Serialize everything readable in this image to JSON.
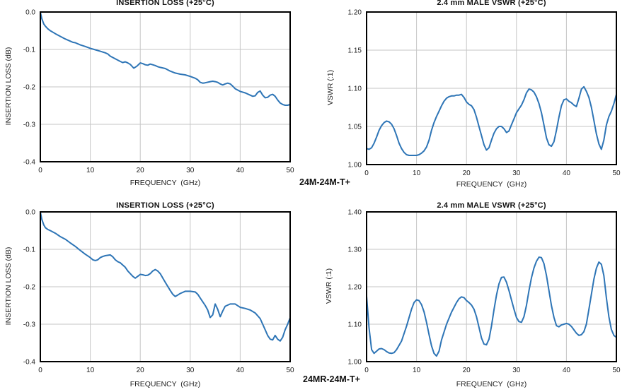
{
  "footer_labels": {
    "top": "24M-24M-T+",
    "bottom": "24MR-24M-T+"
  },
  "colors": {
    "line": "#2E75B6",
    "grid": "#c6c6c6",
    "axis_border": "#000000",
    "tick_text": "#1a1a1a"
  },
  "chart_data": [
    {
      "id": "insertion-loss-24M-24M",
      "type": "line",
      "title": "INSERTION LOSS (+25°C)",
      "xlabel": "FREQUENCY  (GHz)",
      "ylabel": "INSERTION LOSS (dB)",
      "xlim": [
        0,
        50
      ],
      "ylim": [
        -0.4,
        0
      ],
      "xticks": [
        0,
        10,
        20,
        30,
        40,
        50
      ],
      "xtick_labels": [
        "0",
        "10",
        "20",
        "30",
        "40",
        "50"
      ],
      "yticks": [
        0,
        -0.1,
        -0.2,
        -0.3,
        -0.4
      ],
      "ytick_labels": [
        "0.0",
        "-0.1",
        "-0.2",
        "-0.3",
        "-0.4"
      ],
      "grid": true,
      "legend": null,
      "x": [
        0,
        0.3,
        0.7,
        1,
        1.5,
        2,
        3,
        4,
        5,
        6,
        6.5,
        7,
        8,
        9,
        10,
        11,
        12,
        13,
        13.5,
        14,
        15,
        16,
        16.5,
        17,
        17.5,
        18,
        18.7,
        19.3,
        20,
        20.5,
        21,
        21.5,
        22,
        22.5,
        23,
        23.5,
        24,
        25,
        26,
        27,
        28,
        29,
        30,
        31,
        31.5,
        32,
        32.5,
        33,
        34,
        34.5,
        35,
        35.5,
        36,
        36.5,
        37,
        37.5,
        38,
        38.5,
        39,
        40,
        41,
        42,
        42.5,
        43,
        43.5,
        44,
        44.5,
        45,
        45.5,
        46,
        46.5,
        47,
        47.5,
        48,
        48.5,
        49,
        49.5,
        50
      ],
      "y": [
        0,
        -0.018,
        -0.032,
        -0.038,
        -0.045,
        -0.05,
        -0.058,
        -0.065,
        -0.072,
        -0.078,
        -0.081,
        -0.082,
        -0.088,
        -0.092,
        -0.097,
        -0.101,
        -0.105,
        -0.109,
        -0.112,
        -0.118,
        -0.125,
        -0.132,
        -0.135,
        -0.133,
        -0.136,
        -0.14,
        -0.15,
        -0.145,
        -0.136,
        -0.138,
        -0.141,
        -0.142,
        -0.139,
        -0.141,
        -0.143,
        -0.146,
        -0.148,
        -0.151,
        -0.158,
        -0.163,
        -0.166,
        -0.168,
        -0.172,
        -0.177,
        -0.181,
        -0.188,
        -0.19,
        -0.189,
        -0.186,
        -0.185,
        -0.186,
        -0.188,
        -0.192,
        -0.195,
        -0.192,
        -0.19,
        -0.192,
        -0.198,
        -0.205,
        -0.212,
        -0.216,
        -0.222,
        -0.225,
        -0.224,
        -0.215,
        -0.211,
        -0.222,
        -0.229,
        -0.228,
        -0.222,
        -0.22,
        -0.225,
        -0.235,
        -0.243,
        -0.247,
        -0.249,
        -0.249,
        -0.247
      ]
    },
    {
      "id": "vswr-24M-24M",
      "type": "line",
      "title": "2.4 mm MALE VSWR (+25°C)",
      "xlabel": "FREQUENCY  (GHz)",
      "ylabel": "VSWR (:1)",
      "xlim": [
        0,
        50
      ],
      "ylim": [
        1.0,
        1.2
      ],
      "xticks": [
        0,
        10,
        20,
        30,
        40,
        50
      ],
      "xtick_labels": [
        "0",
        "10",
        "20",
        "30",
        "40",
        "50"
      ],
      "yticks": [
        1.2,
        1.15,
        1.1,
        1.05,
        1.0
      ],
      "ytick_labels": [
        "1.20",
        "1.15",
        "1.10",
        "1.05",
        "1.00"
      ],
      "grid": true,
      "legend": null,
      "x": [
        0,
        0.5,
        1,
        1.5,
        2,
        2.5,
        3,
        3.5,
        4,
        4.5,
        5,
        5.5,
        6,
        6.5,
        7,
        7.5,
        8,
        8.5,
        9,
        9.5,
        10,
        10.5,
        11,
        11.5,
        12,
        12.5,
        13,
        13.5,
        14,
        14.5,
        15,
        15.5,
        16,
        16.5,
        17,
        17.5,
        18,
        18.5,
        19,
        19.5,
        20,
        20.5,
        21,
        21.5,
        22,
        22.5,
        23,
        23.5,
        24,
        24.5,
        25,
        25.5,
        26,
        26.5,
        27,
        27.5,
        28,
        28.5,
        29,
        29.5,
        30,
        30.5,
        31,
        31.5,
        32,
        32.5,
        33,
        33.5,
        34,
        34.5,
        35,
        35.5,
        36,
        36.5,
        37,
        37.5,
        38,
        38.5,
        39,
        39.5,
        40,
        40.5,
        41,
        41.5,
        42,
        42.5,
        43,
        43.5,
        44,
        44.5,
        45,
        45.5,
        46,
        46.5,
        47,
        47.5,
        48,
        48.5,
        49,
        49.5,
        50
      ],
      "y": [
        1.021,
        1.02,
        1.022,
        1.028,
        1.036,
        1.045,
        1.051,
        1.055,
        1.057,
        1.056,
        1.053,
        1.047,
        1.038,
        1.028,
        1.021,
        1.016,
        1.013,
        1.012,
        1.012,
        1.012,
        1.012,
        1.013,
        1.015,
        1.018,
        1.023,
        1.032,
        1.045,
        1.055,
        1.063,
        1.07,
        1.077,
        1.083,
        1.087,
        1.089,
        1.09,
        1.09,
        1.091,
        1.091,
        1.092,
        1.088,
        1.082,
        1.079,
        1.077,
        1.072,
        1.062,
        1.05,
        1.038,
        1.026,
        1.019,
        1.022,
        1.032,
        1.041,
        1.047,
        1.05,
        1.05,
        1.047,
        1.042,
        1.044,
        1.052,
        1.06,
        1.068,
        1.073,
        1.078,
        1.085,
        1.094,
        1.099,
        1.098,
        1.095,
        1.089,
        1.08,
        1.068,
        1.052,
        1.035,
        1.026,
        1.024,
        1.03,
        1.045,
        1.062,
        1.077,
        1.085,
        1.086,
        1.083,
        1.081,
        1.078,
        1.076,
        1.087,
        1.099,
        1.102,
        1.096,
        1.088,
        1.075,
        1.058,
        1.04,
        1.027,
        1.02,
        1.032,
        1.052,
        1.063,
        1.07,
        1.08,
        1.092
      ]
    },
    {
      "id": "insertion-loss-24MR-24M",
      "type": "line",
      "title": "INSERTION LOSS (+25°C)",
      "xlabel": "FREQUENCY  (GHz)",
      "ylabel": "INSERTION LOSS (dB)",
      "xlim": [
        0,
        50
      ],
      "ylim": [
        -0.4,
        0
      ],
      "xticks": [
        0,
        10,
        20,
        30,
        40,
        50
      ],
      "xtick_labels": [
        "0",
        "10",
        "20",
        "30",
        "40",
        "50"
      ],
      "yticks": [
        0,
        -0.1,
        -0.2,
        -0.3,
        -0.4
      ],
      "ytick_labels": [
        "0.0",
        "-0.1",
        "-0.2",
        "-0.3",
        "-0.4"
      ],
      "grid": true,
      "legend": null,
      "x": [
        0,
        0.3,
        0.7,
        1,
        1.5,
        2,
        3,
        4,
        5,
        6,
        7,
        8,
        9,
        10,
        10.5,
        11,
        11.5,
        12,
        12.5,
        13,
        14,
        14.5,
        15,
        15.5,
        16,
        17,
        17.5,
        18,
        18.5,
        19,
        19.5,
        20,
        20.5,
        21,
        21.5,
        22,
        22.5,
        23,
        23.5,
        24,
        25,
        26,
        26.5,
        27,
        27.5,
        28,
        29,
        30,
        31,
        31.5,
        32,
        33,
        33.5,
        34,
        34.5,
        35,
        35.5,
        36,
        36.5,
        37,
        38,
        39,
        40,
        41,
        42,
        43,
        44,
        44.5,
        45,
        45.5,
        46,
        46.5,
        47,
        47.5,
        48,
        48.5,
        49,
        49.5,
        50
      ],
      "y": [
        0,
        -0.02,
        -0.035,
        -0.042,
        -0.047,
        -0.05,
        -0.057,
        -0.066,
        -0.073,
        -0.083,
        -0.092,
        -0.103,
        -0.113,
        -0.122,
        -0.128,
        -0.13,
        -0.128,
        -0.122,
        -0.119,
        -0.117,
        -0.115,
        -0.12,
        -0.128,
        -0.133,
        -0.136,
        -0.148,
        -0.158,
        -0.165,
        -0.172,
        -0.177,
        -0.172,
        -0.167,
        -0.168,
        -0.17,
        -0.169,
        -0.165,
        -0.158,
        -0.154,
        -0.158,
        -0.165,
        -0.188,
        -0.21,
        -0.22,
        -0.226,
        -0.222,
        -0.218,
        -0.212,
        -0.212,
        -0.214,
        -0.22,
        -0.23,
        -0.25,
        -0.262,
        -0.282,
        -0.275,
        -0.246,
        -0.26,
        -0.28,
        -0.265,
        -0.252,
        -0.246,
        -0.246,
        -0.255,
        -0.258,
        -0.262,
        -0.27,
        -0.285,
        -0.3,
        -0.315,
        -0.33,
        -0.34,
        -0.342,
        -0.33,
        -0.34,
        -0.345,
        -0.335,
        -0.315,
        -0.3,
        -0.283
      ]
    },
    {
      "id": "vswr-24MR-24M",
      "type": "line",
      "title": "2.4 mm MALE VSWR (+25°C)",
      "xlabel": "FREQUENCY  (GHz)",
      "ylabel": "VSWR (:1)",
      "xlim": [
        0,
        50
      ],
      "ylim": [
        1.0,
        1.4
      ],
      "xticks": [
        0,
        10,
        20,
        30,
        40,
        50
      ],
      "xtick_labels": [
        "0",
        "10",
        "20",
        "30",
        "40",
        "50"
      ],
      "yticks": [
        1.4,
        1.3,
        1.2,
        1.1,
        1.0
      ],
      "ytick_labels": [
        "1.40",
        "1.30",
        "1.20",
        "1.10",
        "1.00"
      ],
      "grid": true,
      "legend": null,
      "x": [
        0,
        0.5,
        1,
        1.5,
        2,
        2.5,
        3,
        3.5,
        4,
        4.5,
        5,
        5.5,
        6,
        7,
        8,
        9,
        9.5,
        10,
        10.5,
        11,
        11.5,
        12,
        12.5,
        13,
        13.5,
        14,
        14.5,
        15,
        16,
        17,
        18,
        18.5,
        19,
        19.5,
        20,
        20.5,
        21,
        21.5,
        22,
        22.5,
        23,
        23.5,
        24,
        24.5,
        25,
        25.5,
        26,
        26.5,
        27,
        27.5,
        28,
        28.5,
        29,
        29.5,
        30,
        30.5,
        31,
        31.5,
        32,
        32.5,
        33,
        33.5,
        34,
        34.5,
        35,
        35.5,
        36,
        36.5,
        37,
        37.5,
        38,
        38.5,
        39,
        39.5,
        40,
        40.5,
        41,
        41.5,
        42,
        42.5,
        43,
        43.5,
        44,
        44.5,
        45,
        45.5,
        46,
        46.5,
        47,
        47.5,
        48,
        48.5,
        49,
        49.5,
        50
      ],
      "y": [
        1.175,
        1.09,
        1.032,
        1.022,
        1.028,
        1.034,
        1.035,
        1.032,
        1.027,
        1.023,
        1.022,
        1.024,
        1.032,
        1.055,
        1.095,
        1.14,
        1.158,
        1.165,
        1.163,
        1.152,
        1.133,
        1.105,
        1.072,
        1.042,
        1.022,
        1.015,
        1.028,
        1.058,
        1.1,
        1.132,
        1.158,
        1.168,
        1.173,
        1.171,
        1.163,
        1.158,
        1.151,
        1.14,
        1.12,
        1.092,
        1.063,
        1.047,
        1.045,
        1.06,
        1.095,
        1.138,
        1.178,
        1.208,
        1.225,
        1.226,
        1.212,
        1.19,
        1.165,
        1.14,
        1.118,
        1.107,
        1.105,
        1.12,
        1.15,
        1.19,
        1.224,
        1.25,
        1.268,
        1.279,
        1.278,
        1.262,
        1.23,
        1.19,
        1.15,
        1.118,
        1.096,
        1.093,
        1.098,
        1.1,
        1.102,
        1.1,
        1.094,
        1.085,
        1.076,
        1.07,
        1.072,
        1.08,
        1.1,
        1.14,
        1.18,
        1.22,
        1.25,
        1.266,
        1.26,
        1.23,
        1.17,
        1.12,
        1.086,
        1.07,
        1.065
      ]
    }
  ]
}
